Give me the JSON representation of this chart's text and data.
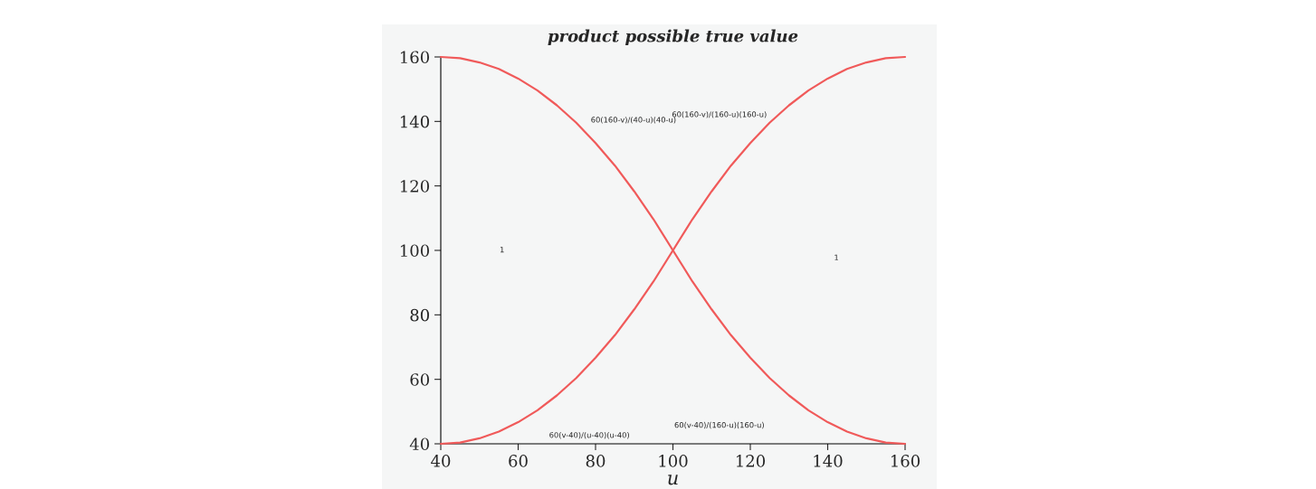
{
  "chart_data": {
    "type": "line",
    "title": "product possible true value",
    "xlabel": "u",
    "x": [
      40,
      45,
      50,
      55,
      60,
      65,
      70,
      75,
      80,
      85,
      90,
      95,
      100,
      105,
      110,
      115,
      120,
      125,
      130,
      135,
      140,
      145,
      150,
      155,
      160
    ],
    "series": [
      {
        "color": "#f05a5a",
        "values": [
          160,
          159.6,
          158.3,
          156.3,
          153.3,
          149.6,
          145,
          139.6,
          133.3,
          126.3,
          118.3,
          109.6,
          100,
          90.4,
          81.7,
          73.7,
          66.7,
          60.4,
          55,
          50.4,
          46.7,
          43.8,
          41.7,
          40.4,
          40
        ]
      },
      {
        "color": "#f05a5a",
        "values": [
          40,
          40.4,
          41.7,
          43.8,
          46.7,
          50.4,
          55,
          60.4,
          66.7,
          73.7,
          81.7,
          90.4,
          100,
          109.6,
          118.3,
          126.3,
          133.3,
          139.6,
          145,
          149.6,
          153.3,
          156.3,
          158.3,
          159.6,
          160
        ]
      }
    ],
    "xlim": [
      40,
      160
    ],
    "ylim": [
      40,
      160
    ],
    "xticks": [
      40,
      60,
      80,
      100,
      120,
      140,
      160
    ],
    "yticks": [
      40,
      60,
      80,
      100,
      120,
      140,
      160
    ],
    "grid": false,
    "legend": false,
    "marker": "none",
    "line_style": "solid",
    "annotations": [
      "60(160-v)/(40-u)(40-u)",
      "60(160-v)/(160-u)(160-u)",
      "60(v-40)/(u-40)(u-40)",
      "60(v-40)/(160-u)(160-u)",
      "1",
      "1"
    ]
  }
}
